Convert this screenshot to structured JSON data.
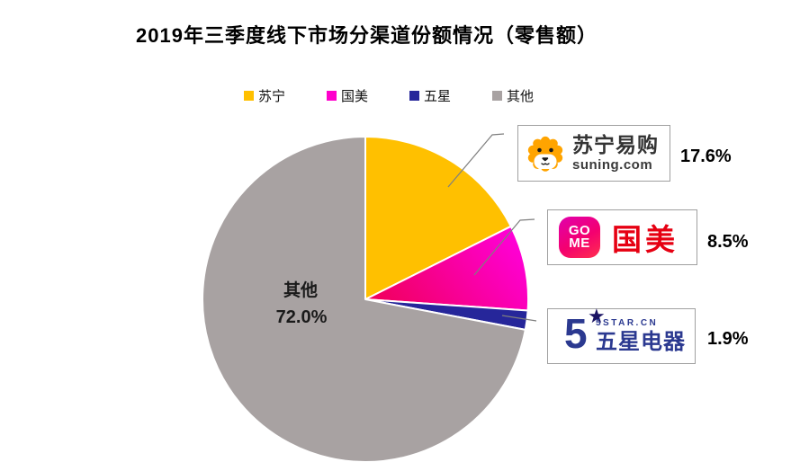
{
  "chart_data": {
    "type": "pie",
    "title": "2019年三季度线下市场分渠道份额情况（零售额）",
    "categories": [
      "苏宁",
      "国美",
      "五星",
      "其他"
    ],
    "values": [
      17.6,
      8.5,
      1.9,
      72.0
    ],
    "labels": [
      "17.6%",
      "8.5%",
      "1.9%",
      "72.0%"
    ],
    "colors": [
      "#FFC000",
      "#FF00CC",
      "#26269A",
      "#A8A2A2"
    ],
    "gome_slice_gradient": {
      "inner": "#F1005E",
      "outer": "#FF00D8"
    },
    "start_angle_deg": 0,
    "direction": "clockwise",
    "legend_position": "top",
    "separator_color": "#FFFFFF",
    "leader_line_color": "#7F7F7F",
    "inside_label": {
      "name": "其他",
      "value": "72.0%"
    }
  },
  "callouts": [
    {
      "brand": "suning",
      "logo_text": "苏宁易购",
      "logo_subtext": "suning.com",
      "percent": "17.6%"
    },
    {
      "brand": "gome",
      "badge_line1": "GO",
      "badge_line2": "ME",
      "logo_text": "国美",
      "percent": "8.5%"
    },
    {
      "brand": "5star",
      "logo_big_digit": "5",
      "star_glyph": "★",
      "logo_small_text": "5STAR.CN",
      "logo_text": "五星电器",
      "percent": "1.9%"
    }
  ]
}
